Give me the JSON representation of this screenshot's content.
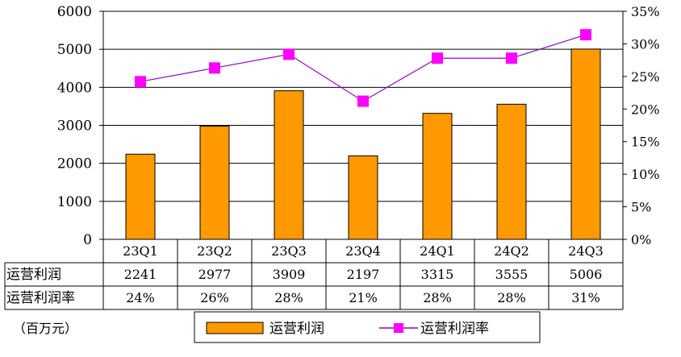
{
  "chart_data": {
    "type": "bar",
    "categories": [
      "23Q1",
      "23Q2",
      "23Q3",
      "23Q4",
      "24Q1",
      "24Q2",
      "24Q3"
    ],
    "series": [
      {
        "name": "运营利润",
        "type": "bar",
        "axis": "left",
        "values": [
          2241,
          2977,
          3909,
          2197,
          3315,
          3555,
          5006
        ]
      },
      {
        "name": "运营利润率",
        "type": "line",
        "axis": "right",
        "values": [
          24,
          26,
          28,
          21,
          28,
          28,
          31
        ],
        "plotted_values": [
          24.2,
          26.3,
          28.4,
          21.2,
          27.8,
          27.8,
          31.4
        ]
      }
    ],
    "ylim_left": [
      0,
      6000
    ],
    "yticks_left": [
      "6000",
      "5000",
      "4000",
      "3000",
      "2000",
      "1000",
      "0"
    ],
    "ylim_right": [
      0,
      35
    ],
    "yticks_right": [
      "35%",
      "30%",
      "25%",
      "20%",
      "15%",
      "10%",
      "5%",
      "0%"
    ],
    "table": {
      "rows": [
        {
          "label": "运营利润",
          "cells": [
            "2241",
            "2977",
            "3909",
            "2197",
            "3315",
            "3555",
            "5006"
          ]
        },
        {
          "label": "运营利润率",
          "cells": [
            "24%",
            "26%",
            "28%",
            "21%",
            "28%",
            "28%",
            "31%"
          ]
        }
      ]
    },
    "unit_note": "（百万元）",
    "legend": {
      "position": "bottom",
      "items": [
        "运营利润",
        "运营利润率"
      ]
    },
    "grid": true,
    "colors": {
      "bar": "#FF9900",
      "bar_stroke": "#000000",
      "line": "#9900CC",
      "marker": "#FF00FF",
      "grid": "#000000"
    }
  }
}
